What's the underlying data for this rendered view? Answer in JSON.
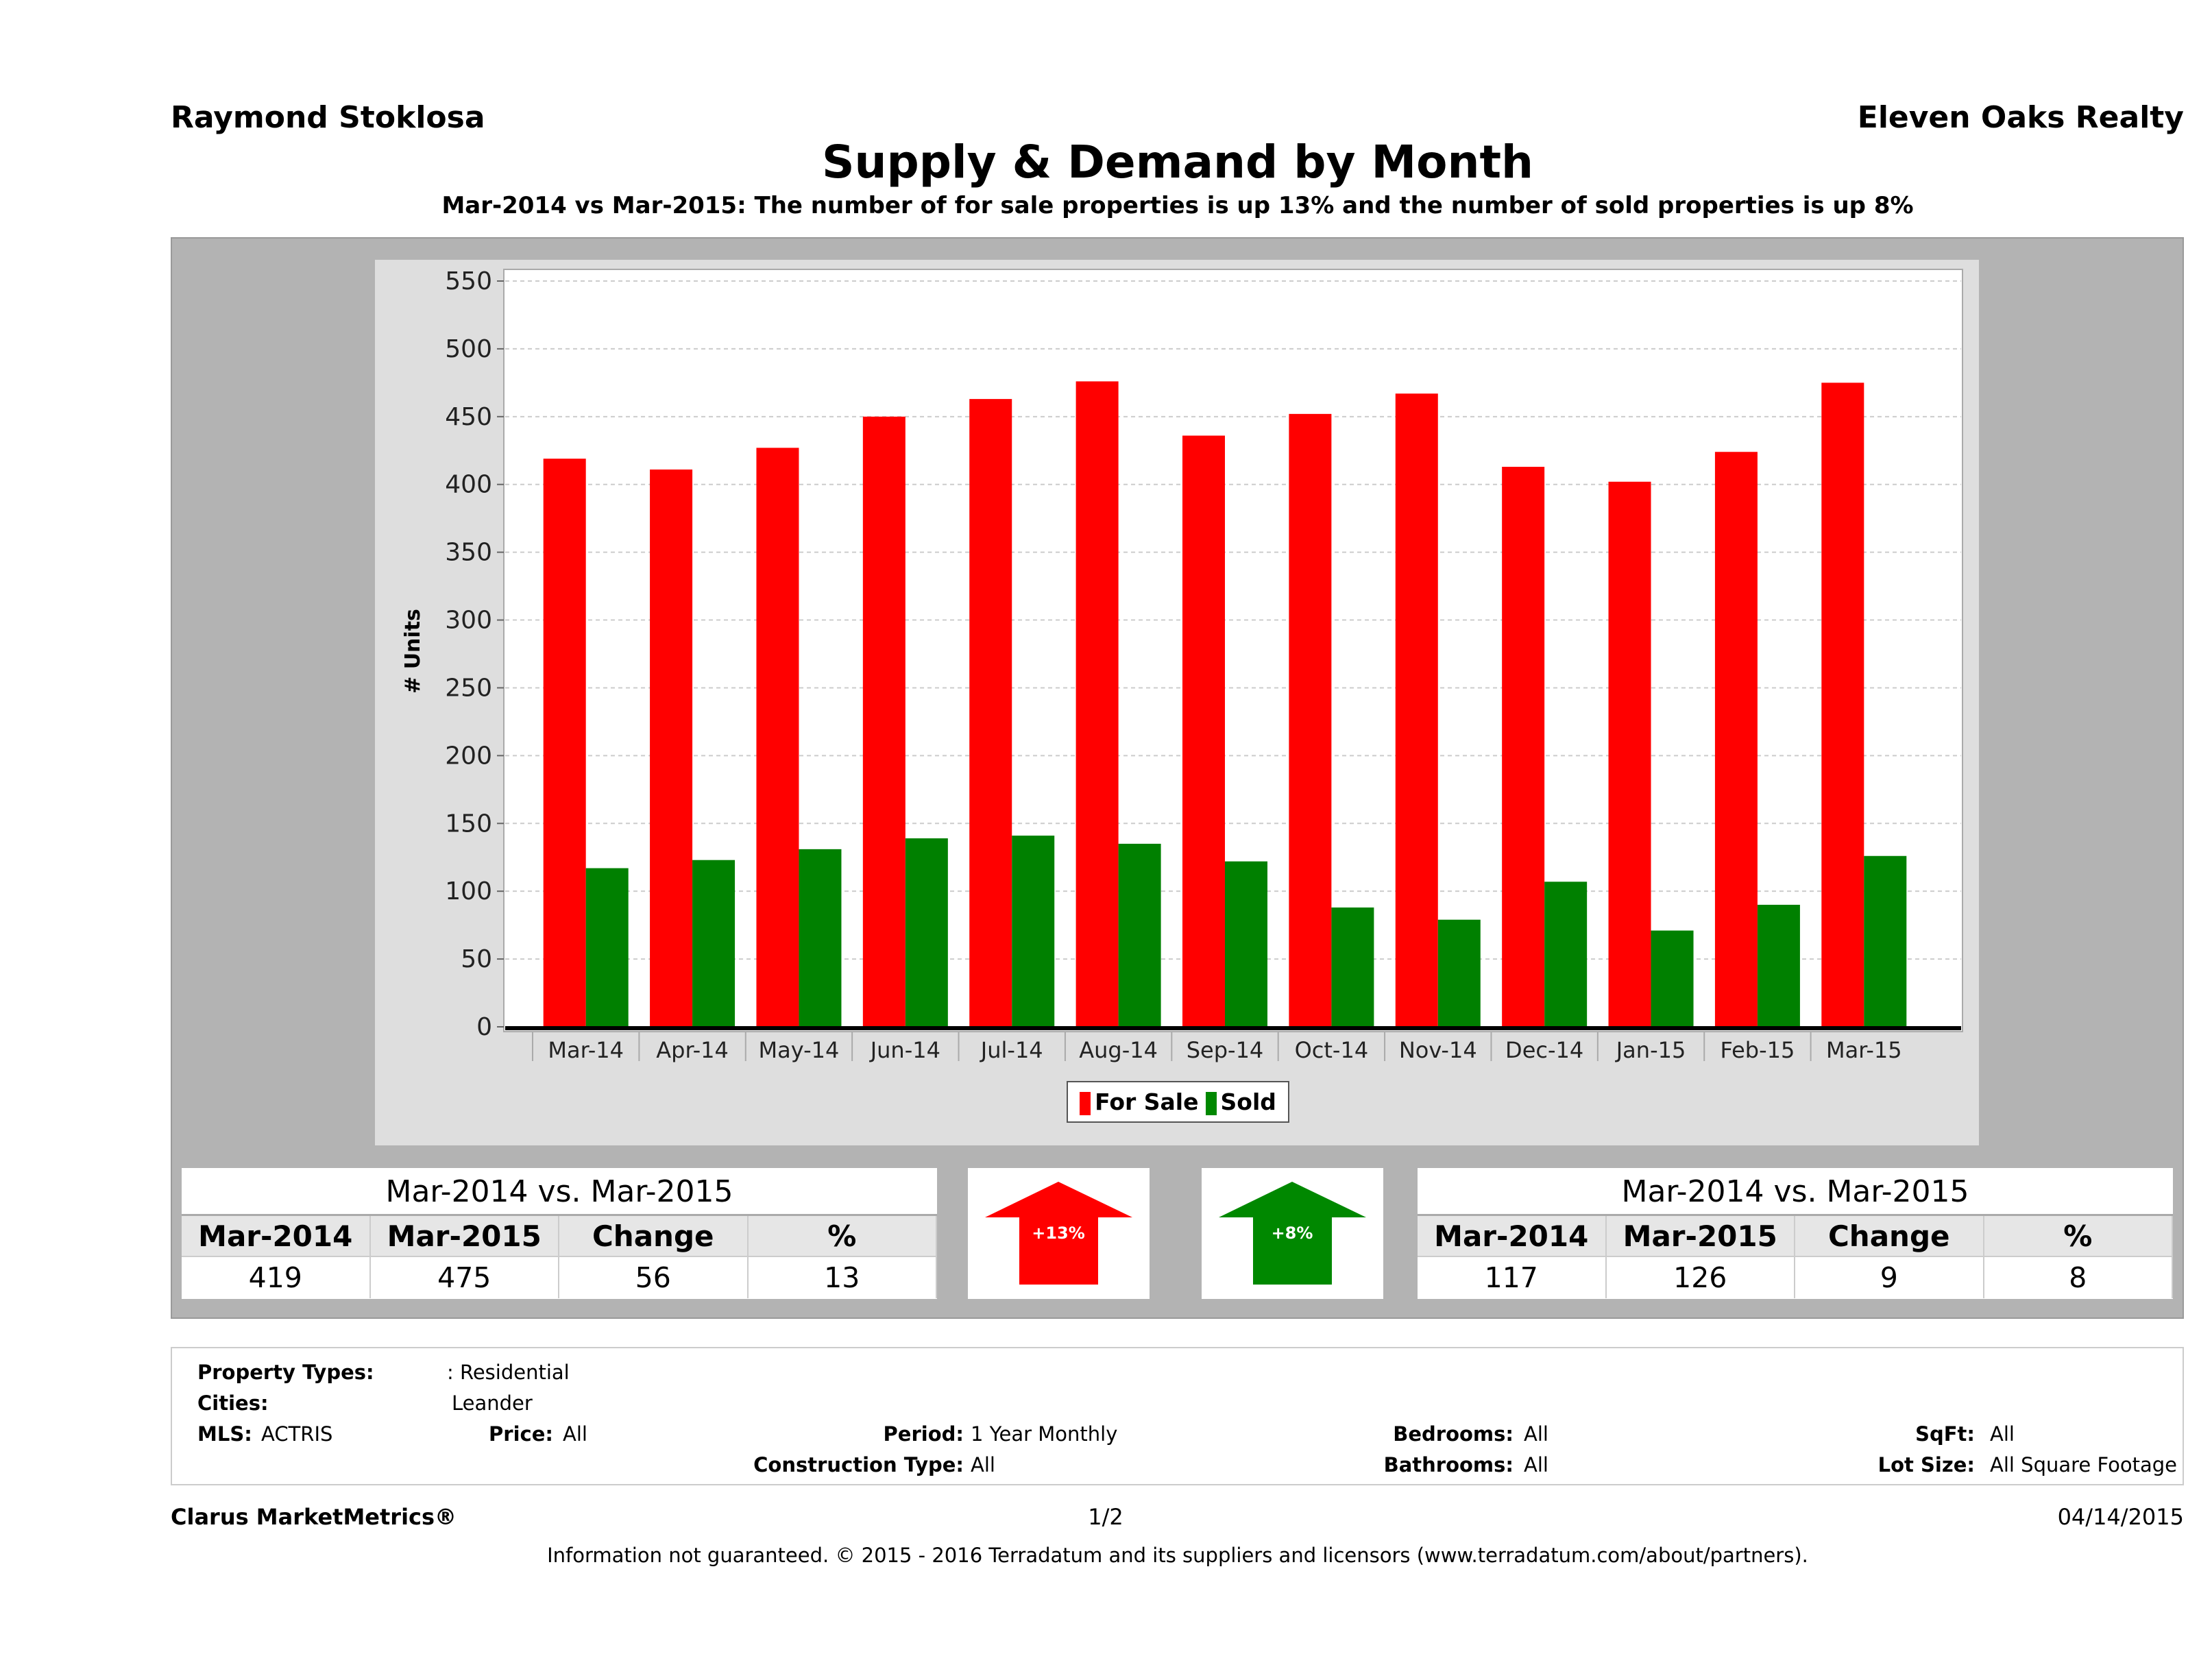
{
  "header": {
    "agent": "Raymond Stoklosa",
    "brokerage": "Eleven Oaks Realty",
    "title": "Supply & Demand by Month",
    "subtitle": "Mar-2014 vs Mar-2015: The number of for sale properties is up 13% and the number of sold properties is up 8%"
  },
  "chart_data": {
    "type": "bar",
    "ylabel": "# Units",
    "ylim": [
      0,
      550
    ],
    "yticks": [
      0,
      50,
      100,
      150,
      200,
      250,
      300,
      350,
      400,
      450,
      500,
      550
    ],
    "grid": true,
    "legend_placement": "bottom",
    "categories": [
      "Mar-14",
      "Apr-14",
      "May-14",
      "Jun-14",
      "Jul-14",
      "Aug-14",
      "Sep-14",
      "Oct-14",
      "Nov-14",
      "Dec-14",
      "Jan-15",
      "Feb-15",
      "Mar-15"
    ],
    "series": [
      {
        "name": "For Sale",
        "color": "#ff0000",
        "values": [
          419,
          411,
          427,
          450,
          463,
          476,
          436,
          452,
          467,
          413,
          402,
          424,
          475
        ]
      },
      {
        "name": "Sold",
        "color": "#008000",
        "values": [
          117,
          123,
          131,
          139,
          141,
          135,
          122,
          88,
          79,
          107,
          71,
          90,
          126
        ]
      }
    ]
  },
  "for_sale_table": {
    "title": "Mar-2014 vs. Mar-2015",
    "headers": [
      "Mar-2014",
      "Mar-2015",
      "Change",
      "%"
    ],
    "values": [
      "419",
      "475",
      "56",
      "13"
    ]
  },
  "for_sale_badge": {
    "label": "+13%",
    "color": "#ff0000",
    "icon": "arrow-up-icon"
  },
  "sold_badge": {
    "label": "+8%",
    "color": "#008000",
    "icon": "arrow-up-icon"
  },
  "sold_table": {
    "title": "Mar-2014 vs. Mar-2015",
    "headers": [
      "Mar-2014",
      "Mar-2015",
      "Change",
      "%"
    ],
    "values": [
      "117",
      "126",
      "9",
      "8"
    ]
  },
  "criteria": {
    "property_types_label": "Property Types:",
    "property_types": ": Residential",
    "cities_label": "Cities:",
    "cities": "Leander",
    "mls_label": "MLS:",
    "mls": "ACTRIS",
    "price_label": "Price:",
    "price": "All",
    "period_label": "Period:",
    "period": "1 Year Monthly",
    "construction_label": "Construction Type:",
    "construction": "All",
    "bedrooms_label": "Bedrooms:",
    "bedrooms": "All",
    "bathrooms_label": "Bathrooms:",
    "bathrooms": "All",
    "sqft_label": "SqFt:",
    "sqft": "All",
    "lot_label": "Lot Size:",
    "lot": "All Square Footage"
  },
  "footer": {
    "brand": "Clarus MarketMetrics®",
    "page": "1/2",
    "date": "04/14/2015",
    "disclaimer": "Information not guaranteed. © 2015 - 2016 Terradatum and its suppliers and licensors (www.terradatum.com/about/partners)."
  }
}
